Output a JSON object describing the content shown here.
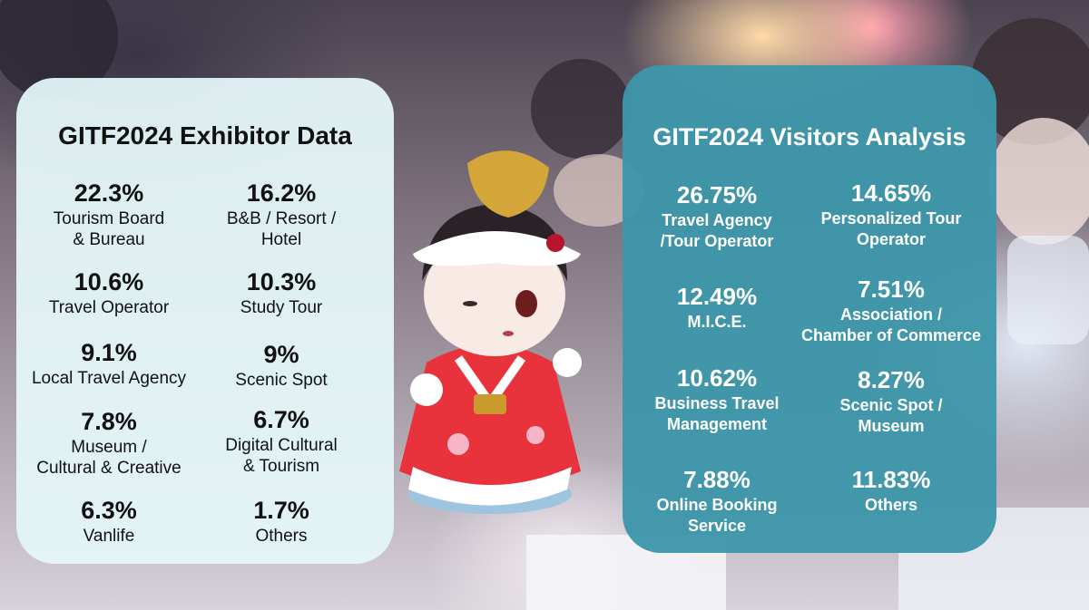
{
  "exhibitor": {
    "title": "GITF2024 Exhibitor Data",
    "items": [
      {
        "value": "22.3%",
        "label": "Tourism Board\n& Bureau"
      },
      {
        "value": "16.2%",
        "label": "B&B / Resort /\nHotel"
      },
      {
        "value": "10.6%",
        "label": "Travel Operator"
      },
      {
        "value": "10.3%",
        "label": "Study Tour"
      },
      {
        "value": "9.1%",
        "label": "Local Travel Agency"
      },
      {
        "value": "9%",
        "label": "Scenic Spot"
      },
      {
        "value": "7.8%",
        "label": "Museum /\nCultural & Creative"
      },
      {
        "value": "6.7%",
        "label": "Digital  Cultural\n& Tourism"
      },
      {
        "value": "6.3%",
        "label": "Vanlife"
      },
      {
        "value": "1.7%",
        "label": "Others"
      }
    ]
  },
  "visitors": {
    "title": "GITF2024 Visitors Analysis",
    "items": [
      {
        "value": "26.75%",
        "label": "Travel Agency\n/Tour Operator"
      },
      {
        "value": "14.65%",
        "label": "Personalized Tour\nOperator"
      },
      {
        "value": "12.49%",
        "label": "M.I.C.E."
      },
      {
        "value": "7.51%",
        "label": "Association /\nChamber of Commerce"
      },
      {
        "value": "10.62%",
        "label": "Business Travel\nManagement"
      },
      {
        "value": "8.27%",
        "label": "Scenic Spot /\nMuseum"
      },
      {
        "value": "7.88%",
        "label": "Online Booking\nService"
      },
      {
        "value": "11.83%",
        "label": "Others"
      }
    ]
  },
  "background": {
    "colors": {
      "panel_left": "#e4f6f8",
      "panel_right": "#3d96aa",
      "figure_dress": "#e8333c"
    }
  }
}
